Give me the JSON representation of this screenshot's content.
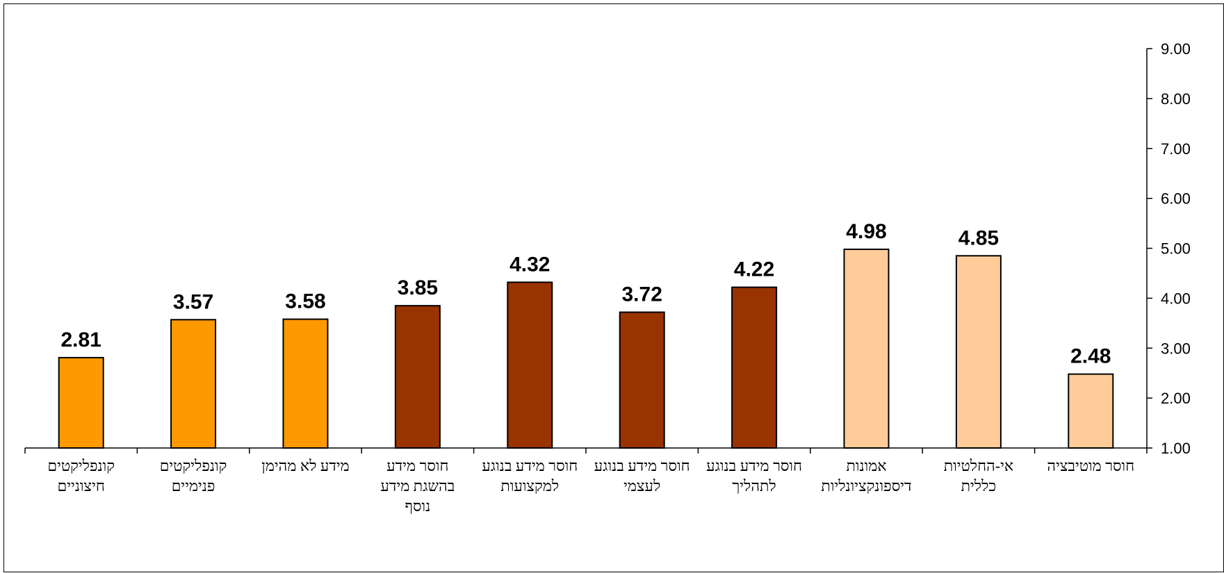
{
  "chart_data": {
    "type": "bar",
    "title": "",
    "xlabel": "",
    "ylabel": "",
    "ylim": [
      1,
      9
    ],
    "yticks": [
      "1.00",
      "2.00",
      "3.00",
      "4.00",
      "5.00",
      "6.00",
      "7.00",
      "8.00",
      "9.00"
    ],
    "y_axis_position": "right",
    "grid": false,
    "legend": "none",
    "categories": [
      [
        "קונפליקטים",
        "חיצוניים"
      ],
      [
        "קונפליקטים",
        "פנימיים"
      ],
      [
        "מידע לא מהימן"
      ],
      [
        "חוסר מידע",
        "בהשגת מידע",
        "נוסף"
      ],
      [
        "חוסר מידע בנוגע",
        "למקצועות"
      ],
      [
        "חוסר מידע בנוגע",
        "לעצמי"
      ],
      [
        "חוסר מידע בנוגע",
        "לתהליך"
      ],
      [
        "אמונות",
        "דיספונקציונליות"
      ],
      [
        "אי-החלטיות",
        "כללית"
      ],
      [
        "חוסר מוטיבציה"
      ]
    ],
    "values": [
      2.81,
      3.57,
      3.58,
      3.85,
      4.32,
      3.72,
      4.22,
      4.98,
      4.85,
      2.48
    ],
    "value_labels": [
      "2.81",
      "3.57",
      "3.58",
      "3.85",
      "4.32",
      "3.72",
      "4.22",
      "4.98",
      "4.85",
      "2.48"
    ],
    "bar_colors": [
      "#FF9900",
      "#FF9900",
      "#FF9900",
      "#993300",
      "#993300",
      "#993300",
      "#993300",
      "#FFCC99",
      "#FFCC99",
      "#FFCC99"
    ],
    "bar_outline": "#000000"
  }
}
